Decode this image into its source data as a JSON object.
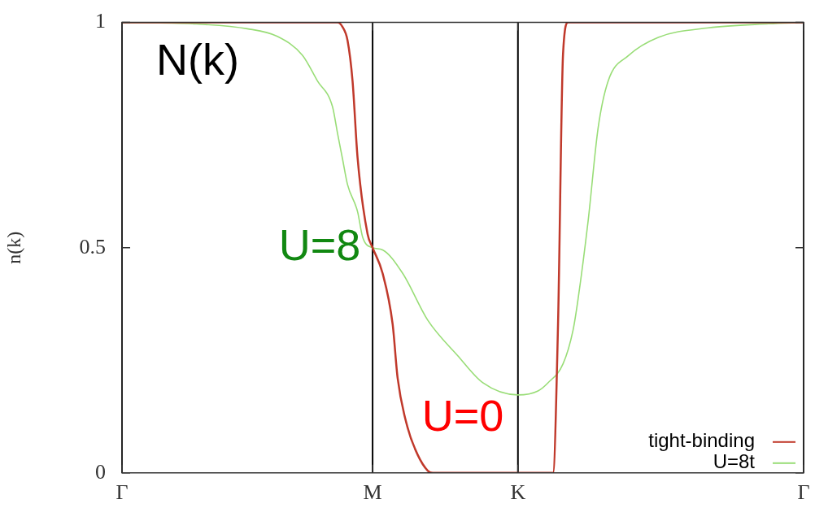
{
  "chart_data": {
    "type": "line",
    "ylabel": "n(k)",
    "categories": [
      "Γ",
      null,
      null,
      null,
      null,
      null,
      null,
      null,
      null,
      null,
      null,
      null,
      null,
      null,
      null,
      null,
      null,
      null,
      null,
      null,
      null,
      null,
      null,
      null,
      null,
      null,
      null,
      null,
      null,
      null,
      null,
      null,
      null,
      null,
      null,
      null,
      null,
      null,
      null,
      null,
      null,
      null,
      null,
      null,
      null,
      null,
      null,
      null,
      null,
      null,
      "M",
      null,
      null,
      null,
      null,
      null,
      null,
      null,
      null,
      null,
      null,
      null,
      null,
      null,
      null,
      null,
      null,
      null,
      null,
      null,
      null,
      null,
      null,
      null,
      null,
      null,
      null,
      null,
      null,
      "K",
      null,
      null,
      null,
      null,
      null,
      null,
      null,
      null,
      null,
      null,
      null,
      null,
      null,
      null,
      null,
      null,
      null,
      null,
      null,
      null,
      null,
      null,
      null,
      null,
      null,
      null,
      null,
      null,
      null,
      null,
      null,
      null,
      null,
      null,
      null,
      null,
      null,
      null,
      null,
      null,
      null,
      null,
      null,
      null,
      null,
      null,
      null,
      null,
      null,
      null,
      null,
      null,
      null,
      null,
      null,
      null,
      "Γ"
    ],
    "ylim": [
      0,
      1
    ],
    "yticks": [
      0,
      0.5,
      1
    ],
    "legend": "bottom right",
    "marker": "none",
    "line_style": "solid",
    "grid": "x",
    "annotations": [
      "N(k)",
      "U=8",
      "U=0"
    ],
    "series": [
      {
        "name": "tight-binding",
        "color": "#c0392b",
        "values": [
          1,
          null,
          null,
          null,
          null,
          null,
          null,
          null,
          null,
          null,
          null,
          null,
          null,
          null,
          null,
          null,
          null,
          null,
          null,
          null,
          null,
          null,
          null,
          null,
          null,
          null,
          null,
          null,
          null,
          null,
          null,
          null,
          null,
          null,
          null,
          null,
          null,
          null,
          null,
          null,
          null,
          null,
          null,
          1,
          0.99,
          0.96,
          0.87,
          0.7,
          null,
          0.53,
          0.5,
          null,
          0.443,
          null,
          0.33,
          0.21,
          null,
          0.1,
          null,
          0.04,
          null,
          0.005,
          0,
          null,
          null,
          null,
          null,
          null,
          null,
          null,
          null,
          null,
          null,
          null,
          null,
          null,
          null,
          null,
          null,
          null,
          null,
          null,
          null,
          null,
          null,
          null,
          0,
          0.33,
          0.93,
          1,
          null,
          null,
          null,
          null,
          null,
          null,
          null,
          null,
          null,
          null,
          null,
          null,
          null,
          null,
          null,
          null,
          null,
          null,
          null,
          null,
          null,
          null,
          null,
          null,
          null,
          null,
          null,
          null,
          null,
          null,
          null,
          null,
          null,
          null,
          null,
          null,
          null,
          null,
          null,
          null,
          null,
          null,
          null,
          null,
          null,
          null,
          1
        ]
      },
      {
        "name": "U=8t",
        "color": "#99dd77",
        "values": [
          1,
          null,
          null,
          null,
          null,
          null,
          null,
          null,
          null,
          null,
          null,
          null,
          null,
          null,
          0.997,
          null,
          null,
          null,
          null,
          null,
          null,
          null,
          null,
          null,
          null,
          0.986,
          null,
          null,
          null,
          null,
          null,
          0.969,
          null,
          null,
          null,
          null,
          0.927,
          null,
          null,
          0.87,
          null,
          null,
          0.813,
          0.754,
          0.697,
          0.64,
          null,
          0.58,
          0.524,
          null,
          0.5,
          null,
          0.495,
          null,
          null,
          null,
          0.443,
          null,
          null,
          null,
          null,
          0.339,
          null,
          null,
          null,
          null,
          null,
          0.26,
          null,
          null,
          null,
          null,
          0.2,
          null,
          null,
          null,
          null,
          null,
          null,
          0.173,
          null,
          null,
          null,
          0.182,
          null,
          0.2,
          null,
          null,
          0.242,
          null,
          0.317,
          0.386,
          null,
          0.559,
          null,
          0.766,
          null,
          0.87,
          null,
          null,
          null,
          0.926,
          null,
          null,
          null,
          null,
          null,
          0.967,
          null,
          null,
          null,
          null,
          null,
          null,
          null,
          null,
          null,
          0.988,
          null,
          null,
          null,
          null,
          null,
          null,
          null,
          null,
          null,
          null,
          null,
          0.997,
          null,
          null,
          null,
          null,
          null,
          null,
          1
        ]
      }
    ]
  }
}
